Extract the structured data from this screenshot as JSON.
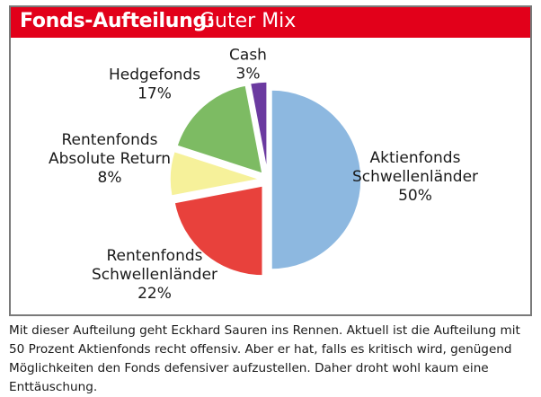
{
  "header": {
    "title_bold": "Fonds-Aufteilung:",
    "title_light": "Guter Mix",
    "color": "#e2001a"
  },
  "chart_data": {
    "type": "pie",
    "title": "Fonds-Aufteilung: Guter Mix",
    "slices": [
      {
        "label_lines": [
          "Aktienfonds",
          "Schwellenländer"
        ],
        "value": 50,
        "value_label": "50%",
        "color": "#8db8e0"
      },
      {
        "label_lines": [
          "Rentenfonds",
          "Schwellenländer"
        ],
        "value": 22,
        "value_label": "22%",
        "color": "#e8413c"
      },
      {
        "label_lines": [
          "Rentenfonds",
          "Absolute Return"
        ],
        "value": 8,
        "value_label": "8%",
        "color": "#f6f19a"
      },
      {
        "label_lines": [
          "Hedgefonds"
        ],
        "value": 17,
        "value_label": "17%",
        "color": "#7dbb63"
      },
      {
        "label_lines": [
          "Cash"
        ],
        "value": 3,
        "value_label": "3%",
        "color": "#6b3aa0"
      }
    ]
  },
  "caption": "Mit dieser Aufteilung geht Eckhard Sauren ins Rennen. Aktuell ist die Aufteilung mit 50 Prozent Aktienfonds recht offensiv. Aber er hat, falls es kritisch wird, genügend Möglichkeiten den Fonds defensiver aufzustellen. Daher droht wohl kaum eine Enttäuschung."
}
